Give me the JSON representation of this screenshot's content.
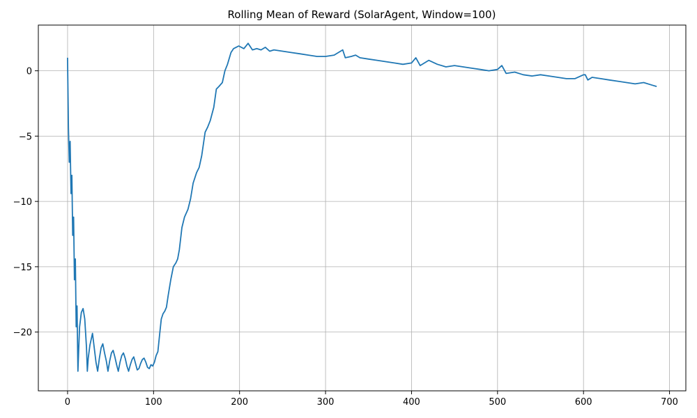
{
  "chart_data": {
    "type": "line",
    "title": "Rolling Mean of Reward (SolarAgent, Window=100)",
    "xlabel": "",
    "ylabel": "",
    "xlim": [
      -34,
      719
    ],
    "ylim": [
      -24.5,
      3.5
    ],
    "xticks": [
      0,
      100,
      200,
      300,
      400,
      500,
      600,
      700
    ],
    "yticks": [
      0,
      -5,
      -10,
      -15,
      -20
    ],
    "grid": true,
    "colors": {
      "line": "#1f77b4",
      "grid": "#b0b0b0",
      "axis": "#000000"
    },
    "series": [
      {
        "x": [
          0,
          1,
          2,
          3,
          4,
          5,
          6,
          7,
          8,
          9,
          10,
          11,
          12,
          13,
          14,
          16,
          18,
          20,
          22,
          23,
          24,
          26,
          28,
          29,
          31,
          33,
          35,
          37,
          39,
          41,
          43,
          45,
          47,
          49,
          51,
          53,
          55,
          57,
          59,
          61,
          63,
          65,
          67,
          69,
          71,
          73,
          75,
          77,
          79,
          81,
          83,
          85,
          87,
          89,
          91,
          93,
          95,
          97,
          99,
          101,
          103,
          105,
          107,
          109,
          111,
          113,
          115,
          117,
          120,
          123,
          126,
          128,
          130,
          133,
          136,
          140,
          143,
          146,
          150,
          153,
          156,
          160,
          163,
          166,
          170,
          173,
          176,
          180,
          183,
          186,
          190,
          193,
          196,
          199,
          205,
          210,
          215,
          220,
          225,
          230,
          235,
          240,
          250,
          260,
          270,
          280,
          290,
          300,
          310,
          320,
          323,
          330,
          335,
          340,
          350,
          360,
          370,
          380,
          390,
          400,
          405,
          410,
          420,
          430,
          440,
          450,
          460,
          470,
          480,
          490,
          500,
          505,
          510,
          520,
          530,
          540,
          550,
          560,
          570,
          580,
          590,
          600,
          602,
          605,
          610,
          620,
          630,
          640,
          650,
          660,
          670,
          680,
          685
        ],
        "y": [
          1.0,
          -4.4,
          -7.0,
          -5.4,
          -9.4,
          -8.0,
          -12.6,
          -11.2,
          -16.0,
          -14.4,
          -19.6,
          -18.0,
          -23.0,
          -21.2,
          -19.6,
          -18.5,
          -18.2,
          -19.0,
          -21.2,
          -23.0,
          -22.0,
          -21.0,
          -20.4,
          -20.1,
          -21.2,
          -22.3,
          -23.0,
          -22.0,
          -21.2,
          -20.9,
          -21.6,
          -22.2,
          -23.0,
          -22.2,
          -21.6,
          -21.4,
          -21.9,
          -22.5,
          -23.0,
          -22.3,
          -21.8,
          -21.6,
          -22.0,
          -22.6,
          -23.0,
          -22.5,
          -22.1,
          -21.9,
          -22.4,
          -22.9,
          -22.8,
          -22.4,
          -22.1,
          -22.0,
          -22.3,
          -22.7,
          -22.8,
          -22.5,
          -22.6,
          -22.3,
          -21.8,
          -21.5,
          -20.2,
          -19.0,
          -18.6,
          -18.4,
          -18.1,
          -17.2,
          -16.0,
          -15.0,
          -14.7,
          -14.4,
          -13.7,
          -12.0,
          -11.2,
          -10.6,
          -9.8,
          -8.6,
          -7.8,
          -7.4,
          -6.5,
          -4.7,
          -4.3,
          -3.8,
          -2.8,
          -1.4,
          -1.2,
          -0.9,
          0.0,
          0.5,
          1.4,
          1.7,
          1.8,
          1.9,
          1.7,
          2.1,
          1.6,
          1.7,
          1.6,
          1.8,
          1.5,
          1.6,
          1.5,
          1.4,
          1.3,
          1.2,
          1.1,
          1.1,
          1.2,
          1.6,
          1.0,
          1.1,
          1.2,
          1.0,
          0.9,
          0.8,
          0.7,
          0.6,
          0.5,
          0.6,
          1.0,
          0.4,
          0.8,
          0.5,
          0.3,
          0.4,
          0.3,
          0.2,
          0.1,
          0.0,
          0.1,
          0.4,
          -0.2,
          -0.1,
          -0.3,
          -0.4,
          -0.3,
          -0.4,
          -0.5,
          -0.6,
          -0.6,
          -0.3,
          -0.3,
          -0.7,
          -0.5,
          -0.6,
          -0.7,
          -0.8,
          -0.9,
          -1.0,
          -0.9,
          -1.1,
          -1.2
        ]
      }
    ]
  }
}
